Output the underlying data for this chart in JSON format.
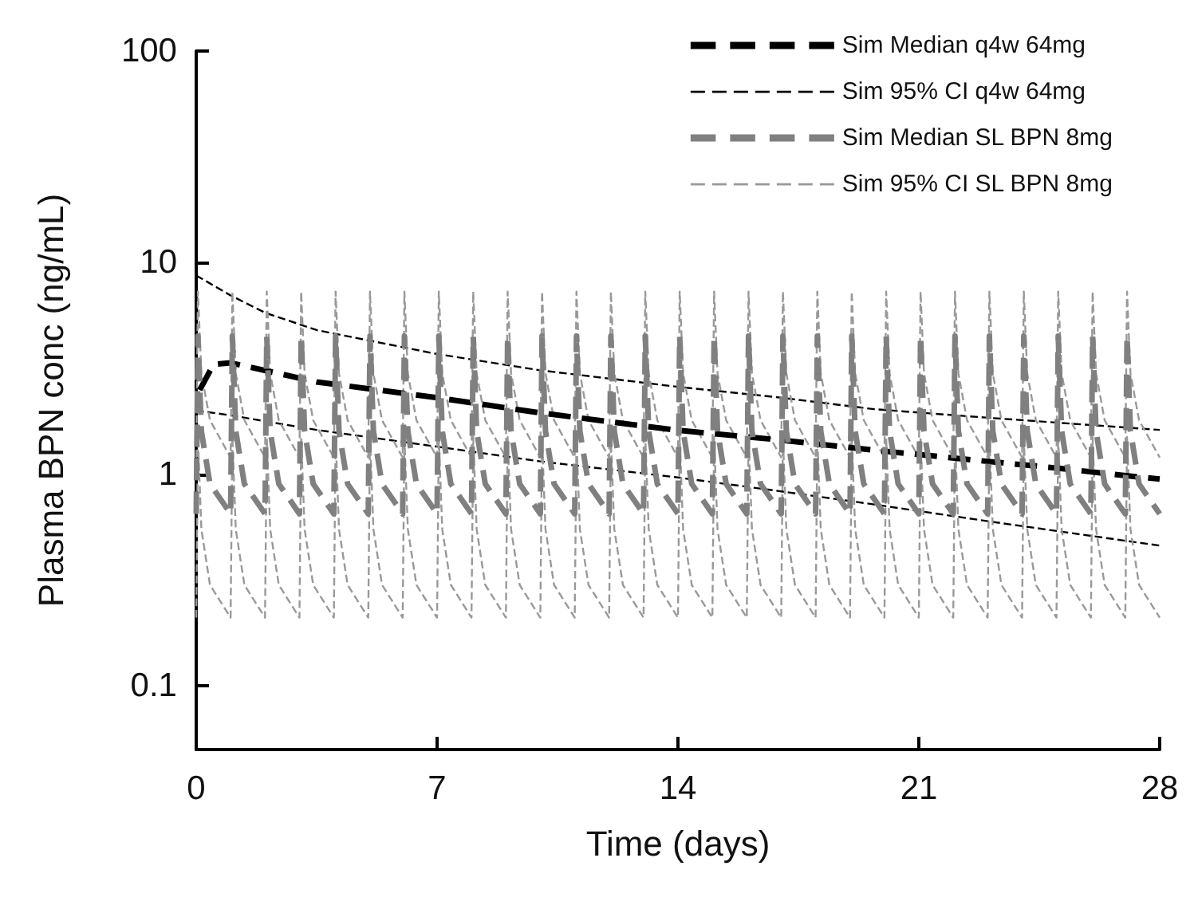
{
  "chart_data": {
    "type": "line",
    "xlabel": "Time (days)",
    "ylabel": "Plasma BPN conc (ng/mL)",
    "log": "y",
    "xlim": [
      0,
      28
    ],
    "xticks": [
      0,
      7,
      14,
      21,
      28
    ],
    "ylim": [
      0.05,
      100
    ],
    "yticks": [
      0.1,
      1,
      10,
      100
    ],
    "grid": false,
    "legend": "top right",
    "marker": "none",
    "line_style": "dashed",
    "x": [
      0,
      0.05,
      0.15,
      0.4,
      1,
      1.05,
      1.15,
      1.4,
      2,
      2.05,
      2.15,
      2.4,
      3,
      3.05,
      3.15,
      3.4,
      4,
      4.05,
      4.15,
      4.4,
      5,
      5.05,
      5.15,
      5.4,
      6,
      6.05,
      6.15,
      6.4,
      7,
      7.05,
      7.15,
      7.4,
      8,
      8.05,
      8.15,
      8.4,
      9,
      9.05,
      9.15,
      9.4,
      10,
      10.05,
      10.15,
      10.4,
      11,
      11.05,
      11.15,
      11.4,
      12,
      12.05,
      12.15,
      12.4,
      13,
      13.05,
      13.15,
      13.4,
      14,
      14.05,
      14.15,
      14.4,
      15,
      15.05,
      15.15,
      15.4,
      16,
      16.05,
      16.15,
      16.4,
      17,
      17.05,
      17.15,
      17.4,
      18,
      18.05,
      18.15,
      18.4,
      19,
      19.05,
      19.15,
      19.4,
      20,
      20.05,
      20.15,
      20.4,
      21,
      21.05,
      21.15,
      21.4,
      22,
      22.05,
      22.15,
      22.4,
      23,
      23.05,
      23.15,
      23.4,
      24,
      24.05,
      24.15,
      24.4,
      25,
      25.05,
      25.15,
      25.4,
      26,
      26.05,
      26.15,
      26.4,
      27,
      27.05,
      27.15,
      27.4,
      28
    ],
    "series": [
      {
        "name": "Sim Median q4w 64mg",
        "color": "#000000",
        "x": [
          0.1,
          0.5,
          1,
          3.5,
          7,
          10,
          13.9,
          17,
          19.7,
          23,
          25,
          27.4,
          28
        ],
        "values": [
          2.5,
          3.3,
          3.36,
          2.73,
          2.3,
          1.95,
          1.62,
          1.45,
          1.3,
          1.15,
          1.07,
          0.97,
          0.95
        ]
      },
      {
        "name": "Sim 95% CI q4w 64mg",
        "color": "#000000",
        "x": [
          0,
          1,
          2,
          3.5,
          7,
          10,
          13.9,
          17,
          19.7,
          23,
          28,
          null,
          0,
          1,
          2,
          3.5,
          7,
          10,
          13.9,
          17,
          19.7,
          23,
          28
        ],
        "values": [
          8.7,
          7.0,
          5.8,
          4.8,
          3.7,
          3.1,
          2.6,
          2.3,
          2.03,
          1.85,
          1.62,
          null,
          2.0,
          1.9,
          1.78,
          1.62,
          1.35,
          1.15,
          0.97,
          0.83,
          0.72,
          0.6,
          0.46
        ]
      },
      {
        "name": "Sim Median SL BPN 8mg",
        "color": "#808080",
        "values": [
          0.65,
          4.5,
          1.6,
          0.9,
          0.65,
          4.5,
          1.6,
          0.9,
          0.65,
          4.5,
          1.6,
          0.9,
          0.65,
          4.5,
          1.6,
          0.9,
          0.65,
          4.5,
          1.6,
          0.9,
          0.65,
          4.5,
          1.6,
          0.9,
          0.65,
          4.5,
          1.6,
          0.9,
          0.65,
          4.5,
          1.6,
          0.9,
          0.65,
          4.5,
          1.6,
          0.9,
          0.65,
          4.5,
          1.6,
          0.9,
          0.65,
          4.5,
          1.6,
          0.9,
          0.65,
          4.5,
          1.6,
          0.9,
          0.65,
          4.5,
          1.6,
          0.9,
          0.65,
          4.5,
          1.6,
          0.9,
          0.65,
          4.5,
          1.6,
          0.9,
          0.65,
          4.5,
          1.6,
          0.9,
          0.65,
          4.5,
          1.6,
          0.9,
          0.65,
          4.5,
          1.6,
          0.9,
          0.65,
          4.5,
          1.6,
          0.9,
          0.65,
          4.5,
          1.6,
          0.9,
          0.65,
          4.5,
          1.6,
          0.9,
          0.65,
          4.5,
          1.6,
          0.9,
          0.65,
          4.5,
          1.6,
          0.9,
          0.65,
          4.5,
          1.6,
          0.9,
          0.65,
          4.5,
          1.6,
          0.9,
          0.65,
          4.5,
          1.6,
          0.9,
          0.65,
          4.5,
          1.6,
          0.9,
          0.65,
          4.5,
          1.6,
          0.9,
          0.65
        ]
      },
      {
        "name": "Sim 95% CI SL BPN 8mg",
        "color": "#999999",
        "x": [
          0,
          0.05,
          0.15,
          0.4,
          1,
          1.05,
          1.15,
          1.4,
          2,
          2.05,
          2.15,
          2.4,
          3,
          3.05,
          3.15,
          3.4,
          4,
          4.05,
          4.15,
          4.4,
          5,
          5.05,
          5.15,
          5.4,
          6,
          6.05,
          6.15,
          6.4,
          7,
          7.05,
          7.15,
          7.4,
          8,
          8.05,
          8.15,
          8.4,
          9,
          9.05,
          9.15,
          9.4,
          10,
          10.05,
          10.15,
          10.4,
          11,
          11.05,
          11.15,
          11.4,
          12,
          12.05,
          12.15,
          12.4,
          13,
          13.05,
          13.15,
          13.4,
          14,
          14.05,
          14.15,
          14.4,
          15,
          15.05,
          15.15,
          15.4,
          16,
          16.05,
          16.15,
          16.4,
          17,
          17.05,
          17.15,
          17.4,
          18,
          18.05,
          18.15,
          18.4,
          19,
          19.05,
          19.15,
          19.4,
          20,
          20.05,
          20.15,
          20.4,
          21,
          21.05,
          21.15,
          21.4,
          22,
          22.05,
          22.15,
          22.4,
          23,
          23.05,
          23.15,
          23.4,
          24,
          24.05,
          24.15,
          24.4,
          25,
          25.05,
          25.15,
          25.4,
          26,
          26.05,
          26.15,
          26.4,
          27,
          27.05,
          27.15,
          27.4,
          28,
          null,
          0,
          0.05,
          0.15,
          0.4,
          1,
          1.05,
          1.15,
          1.4,
          2,
          2.05,
          2.15,
          2.4,
          3,
          3.05,
          3.15,
          3.4,
          4,
          4.05,
          4.15,
          4.4,
          5,
          5.05,
          5.15,
          5.4,
          6,
          6.05,
          6.15,
          6.4,
          7,
          7.05,
          7.15,
          7.4,
          8,
          8.05,
          8.15,
          8.4,
          9,
          9.05,
          9.15,
          9.4,
          10,
          10.05,
          10.15,
          10.4,
          11,
          11.05,
          11.15,
          11.4,
          12,
          12.05,
          12.15,
          12.4,
          13,
          13.05,
          13.15,
          13.4,
          14,
          14.05,
          14.15,
          14.4,
          15,
          15.05,
          15.15,
          15.4,
          16,
          16.05,
          16.15,
          16.4,
          17,
          17.05,
          17.15,
          17.4,
          18,
          18.05,
          18.15,
          18.4,
          19,
          19.05,
          19.15,
          19.4,
          20,
          20.05,
          20.15,
          20.4,
          21,
          21.05,
          21.15,
          21.4,
          22,
          22.05,
          22.15,
          22.4,
          23,
          23.05,
          23.15,
          23.4,
          24,
          24.05,
          24.15,
          24.4,
          25,
          25.05,
          25.15,
          25.4,
          26,
          26.05,
          26.15,
          26.4,
          27,
          27.05,
          27.15,
          27.4,
          28
        ],
        "values": [
          1.2,
          7.3,
          3.0,
          1.8,
          1.2,
          7.3,
          3.0,
          1.8,
          1.2,
          7.3,
          3.0,
          1.8,
          1.2,
          7.3,
          3.0,
          1.8,
          1.2,
          7.3,
          3.0,
          1.8,
          1.2,
          7.3,
          3.0,
          1.8,
          1.2,
          7.3,
          3.0,
          1.8,
          1.2,
          7.3,
          3.0,
          1.8,
          1.2,
          7.3,
          3.0,
          1.8,
          1.2,
          7.3,
          3.0,
          1.8,
          1.2,
          7.3,
          3.0,
          1.8,
          1.2,
          7.3,
          3.0,
          1.8,
          1.2,
          7.3,
          3.0,
          1.8,
          1.2,
          7.3,
          3.0,
          1.8,
          1.2,
          7.3,
          3.0,
          1.8,
          1.2,
          7.3,
          3.0,
          1.8,
          1.2,
          7.3,
          3.0,
          1.8,
          1.2,
          7.3,
          3.0,
          1.8,
          1.2,
          7.3,
          3.0,
          1.8,
          1.2,
          7.3,
          3.0,
          1.8,
          1.2,
          7.3,
          3.0,
          1.8,
          1.2,
          7.3,
          3.0,
          1.8,
          1.2,
          7.3,
          3.0,
          1.8,
          1.2,
          7.3,
          3.0,
          1.8,
          1.2,
          7.3,
          3.0,
          1.8,
          1.2,
          7.3,
          3.0,
          1.8,
          1.2,
          7.3,
          3.0,
          1.8,
          1.2,
          7.3,
          3.0,
          1.8,
          1.2,
          null,
          0.21,
          1.5,
          0.55,
          0.3,
          0.21,
          1.5,
          0.55,
          0.3,
          0.21,
          1.5,
          0.55,
          0.3,
          0.21,
          1.5,
          0.55,
          0.3,
          0.21,
          1.5,
          0.55,
          0.3,
          0.21,
          1.5,
          0.55,
          0.3,
          0.21,
          1.5,
          0.55,
          0.3,
          0.21,
          1.5,
          0.55,
          0.3,
          0.21,
          1.5,
          0.55,
          0.3,
          0.21,
          1.5,
          0.55,
          0.3,
          0.21,
          1.5,
          0.55,
          0.3,
          0.21,
          1.5,
          0.55,
          0.3,
          0.21,
          1.5,
          0.55,
          0.3,
          0.21,
          1.5,
          0.55,
          0.3,
          0.21,
          1.5,
          0.55,
          0.3,
          0.21,
          1.5,
          0.55,
          0.3,
          0.21,
          1.5,
          0.55,
          0.3,
          0.21,
          1.5,
          0.55,
          0.3,
          0.21,
          1.5,
          0.55,
          0.3,
          0.21,
          1.5,
          0.55,
          0.3,
          0.21,
          1.5,
          0.55,
          0.3,
          0.21,
          1.5,
          0.55,
          0.3,
          0.21,
          1.5,
          0.55,
          0.3,
          0.21,
          1.5,
          0.55,
          0.3,
          0.21,
          1.5,
          0.55,
          0.3,
          0.21,
          1.5,
          0.55,
          0.3,
          0.21,
          1.5,
          0.55,
          0.3,
          0.21,
          1.5,
          0.55,
          0.3,
          0.21
        ]
      }
    ]
  }
}
